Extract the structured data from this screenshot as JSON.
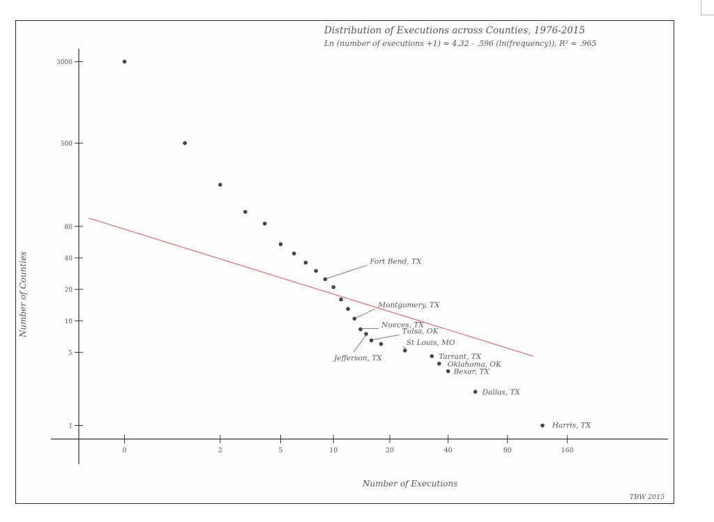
{
  "chart_data": {
    "type": "scatter",
    "title": "Distribution of Executions across Counties, 1976-2015",
    "subtitle": "Ln (number of executions +1) = 4.32 - .596 (ln(frequency)), R² = .965",
    "xlabel": "Number of Executions",
    "ylabel": "Number of Counties",
    "x_scale": "log(x+1)",
    "y_scale": "log",
    "x_ticks": [
      "0",
      "2",
      "5",
      "10",
      "20",
      "40",
      "80",
      "160"
    ],
    "y_ticks": [
      "3000",
      "500",
      "80",
      "40",
      "20",
      "10",
      "5",
      "1"
    ],
    "grid": false,
    "legend": "none",
    "fit_line": {
      "intercept": 4.32,
      "slope": -0.596
    },
    "fit_color": "#d9777d",
    "points": [
      {
        "x": 0,
        "y": 3000
      },
      {
        "x": 1,
        "y": 500
      },
      {
        "x": 2,
        "y": 200
      },
      {
        "x": 3,
        "y": 110
      },
      {
        "x": 4,
        "y": 85
      },
      {
        "x": 5,
        "y": 54
      },
      {
        "x": 6,
        "y": 44
      },
      {
        "x": 7,
        "y": 36
      },
      {
        "x": 8,
        "y": 30
      },
      {
        "x": 9,
        "y": 25
      },
      {
        "x": 10,
        "y": 21
      },
      {
        "x": 11,
        "y": 16
      },
      {
        "x": 12,
        "y": 13
      },
      {
        "x": 13,
        "y": 10.5
      },
      {
        "x": 14,
        "y": 8.3
      },
      {
        "x": 15,
        "y": 7.5
      },
      {
        "x": 16,
        "y": 6.5
      },
      {
        "x": 18,
        "y": 6
      },
      {
        "x": 24,
        "y": 5.2
      },
      {
        "x": 33,
        "y": 4.6
      },
      {
        "x": 36,
        "y": 3.9
      },
      {
        "x": 40,
        "y": 3.3
      },
      {
        "x": 55,
        "y": 2.1
      },
      {
        "x": 120,
        "y": 1
      }
    ],
    "annotations": [
      {
        "label": "Fort Bend, TX",
        "x": 9,
        "y": 25
      },
      {
        "label": "Montgomery, TX",
        "x": 13,
        "y": 10.5
      },
      {
        "label": "Nueces, TX",
        "x": 14,
        "y": 8.3
      },
      {
        "label": "Jefferson, TX",
        "x": 15,
        "y": 7.5
      },
      {
        "label": "Tulsa, OK",
        "x": 16,
        "y": 6.5
      },
      {
        "label": "St Louis, MO",
        "x": 24,
        "y": 5.2
      },
      {
        "label": "Tarrant, TX",
        "x": 33,
        "y": 4.6
      },
      {
        "label": "Oklahoma, OK",
        "x": 36,
        "y": 3.9
      },
      {
        "label": "Bexar, TX",
        "x": 40,
        "y": 3.3
      },
      {
        "label": "Dallas, TX",
        "x": 55,
        "y": 2.1
      },
      {
        "label": "Harris, TX",
        "x": 120,
        "y": 1
      }
    ],
    "signature": "TBW 2015"
  }
}
